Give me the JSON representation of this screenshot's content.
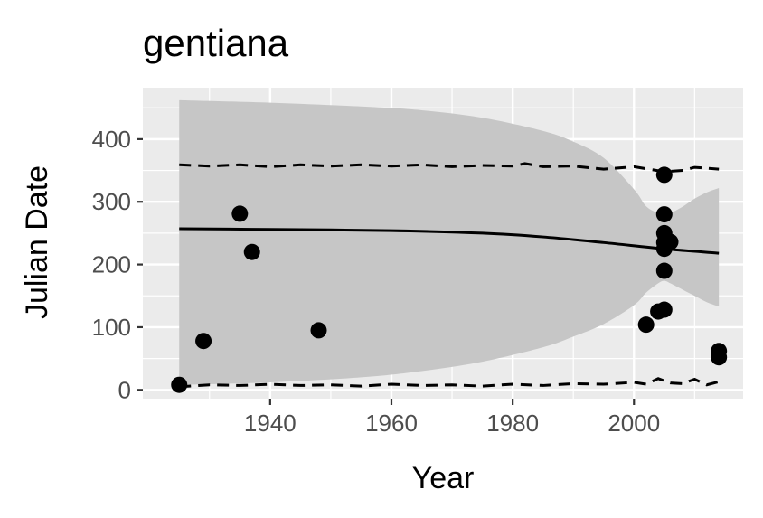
{
  "chart_data": {
    "type": "scatter",
    "title": "gentiana",
    "xlabel": "Year",
    "ylabel": "Julian Date",
    "xlim": [
      1919,
      2018
    ],
    "ylim": [
      -14,
      482
    ],
    "x_ticks": [
      1940,
      1960,
      1980,
      2000
    ],
    "y_ticks": [
      0,
      100,
      200,
      300,
      400
    ],
    "x_tick_labels": [
      "1940",
      "1960",
      "1980",
      "2000"
    ],
    "y_tick_labels": [
      "0",
      "100",
      "200",
      "300",
      "400"
    ],
    "grid": true,
    "legend": "none",
    "colors": {
      "panel": "#ebebeb",
      "grid": "#ffffff",
      "ribbon": "#c6c6c6",
      "points": "#000000",
      "fit": "#000000",
      "bounds": "#000000"
    },
    "points": [
      {
        "x": 1925,
        "y": 8
      },
      {
        "x": 1929,
        "y": 78
      },
      {
        "x": 1935,
        "y": 281
      },
      {
        "x": 1937,
        "y": 220
      },
      {
        "x": 1948,
        "y": 95
      },
      {
        "x": 2002,
        "y": 104
      },
      {
        "x": 2004,
        "y": 125
      },
      {
        "x": 2005,
        "y": 128
      },
      {
        "x": 2005,
        "y": 190
      },
      {
        "x": 2005,
        "y": 225
      },
      {
        "x": 2005,
        "y": 235
      },
      {
        "x": 2005,
        "y": 250
      },
      {
        "x": 2005,
        "y": 280
      },
      {
        "x": 2005,
        "y": 343
      },
      {
        "x": 2006,
        "y": 236
      },
      {
        "x": 2014,
        "y": 52
      },
      {
        "x": 2014,
        "y": 62
      }
    ],
    "fit_line": {
      "x": [
        1925,
        1940,
        1960,
        1975,
        1985,
        1995,
        2005,
        2014
      ],
      "y": [
        257,
        256,
        254,
        250,
        244,
        235,
        225,
        218
      ]
    },
    "confidence_band": {
      "x": [
        1925,
        1940,
        1955,
        1965,
        1975,
        1985,
        1990,
        1995,
        2000,
        2002,
        2004,
        2005,
        2006,
        2008,
        2010,
        2012,
        2014
      ],
      "upper": [
        462,
        458,
        452,
        446,
        434,
        413,
        396,
        370,
        320,
        293,
        282,
        280,
        282,
        292,
        305,
        315,
        322
      ],
      "lower": [
        8,
        12,
        20,
        30,
        45,
        68,
        85,
        105,
        135,
        155,
        170,
        174,
        170,
        160,
        150,
        140,
        133
      ]
    },
    "upper_bound": {
      "x": [
        1925,
        1930,
        1935,
        1940,
        1945,
        1950,
        1955,
        1960,
        1965,
        1970,
        1975,
        1980,
        1982,
        1985,
        1990,
        1995,
        2000,
        2005,
        2008,
        2010,
        2014
      ],
      "y": [
        359,
        357,
        359,
        356,
        359,
        357,
        359,
        357,
        359,
        356,
        358,
        357,
        361,
        356,
        357,
        352,
        356,
        348,
        350,
        355,
        352
      ]
    },
    "lower_bound": {
      "x": [
        1925,
        1930,
        1935,
        1940,
        1945,
        1950,
        1955,
        1960,
        1965,
        1970,
        1975,
        1980,
        1985,
        1990,
        1995,
        2000,
        2002,
        2004,
        2006,
        2008,
        2010,
        2012,
        2014
      ],
      "y": [
        5,
        8,
        7,
        9,
        7,
        8,
        6,
        9,
        7,
        8,
        6,
        9,
        7,
        10,
        9,
        12,
        9,
        18,
        11,
        10,
        17,
        8,
        13
      ]
    }
  }
}
